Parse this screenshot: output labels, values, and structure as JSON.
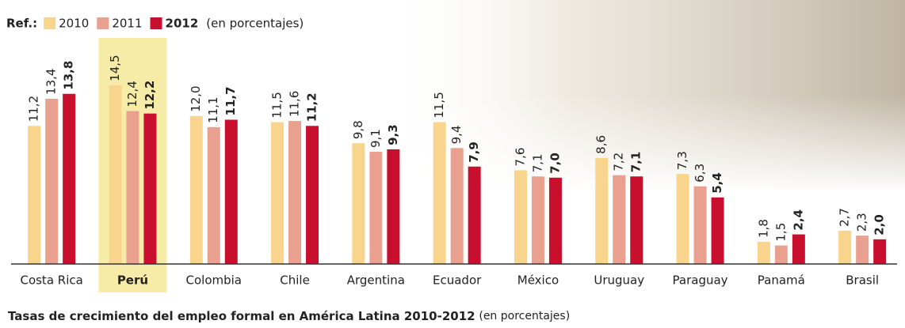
{
  "chart_data": {
    "type": "bar",
    "legend_label": "Ref.:",
    "legend_note": "(en porcentajes)",
    "highlight": "Perú",
    "categories": [
      "Costa Rica",
      "Perú",
      "Colombia",
      "Chile",
      "Argentina",
      "Ecuador",
      "México",
      "Uruguay",
      "Paraguay",
      "Panamá",
      "Brasil"
    ],
    "series": [
      {
        "name": "2010",
        "color": "#f9d48c",
        "bold": false,
        "values": [
          11.2,
          14.5,
          12.0,
          11.5,
          9.8,
          11.5,
          7.6,
          8.6,
          7.3,
          1.8,
          2.7
        ],
        "value_labels": [
          "11,2",
          "14,5",
          "12,0",
          "11,5",
          "9,8",
          "11,5",
          "7,6",
          "8,6",
          "7,3",
          "1,8",
          "2,7"
        ]
      },
      {
        "name": "2011",
        "color": "#e9a08e",
        "bold": false,
        "values": [
          13.4,
          12.4,
          11.1,
          11.6,
          9.1,
          9.4,
          7.1,
          7.2,
          6.3,
          1.5,
          2.3
        ],
        "value_labels": [
          "13,4",
          "12,4",
          "11,1",
          "11,6",
          "9,1",
          "9,4",
          "7,1",
          "7,2",
          "6,3",
          "1,5",
          "2,3"
        ]
      },
      {
        "name": "2012",
        "color": "#c8102e",
        "bold": true,
        "values": [
          13.8,
          12.2,
          11.7,
          11.2,
          9.3,
          7.9,
          7.0,
          7.1,
          5.4,
          2.4,
          2.0
        ],
        "value_labels": [
          "13,8",
          "12,2",
          "11,7",
          "11,2",
          "9,3",
          "7,9",
          "7,0",
          "7,1",
          "5,4",
          "2,4",
          "2,0"
        ]
      }
    ],
    "caption": "Tasas de crecimiento del empleo formal en América Latina 2010-2012",
    "caption_note": "(en porcentajes)"
  }
}
